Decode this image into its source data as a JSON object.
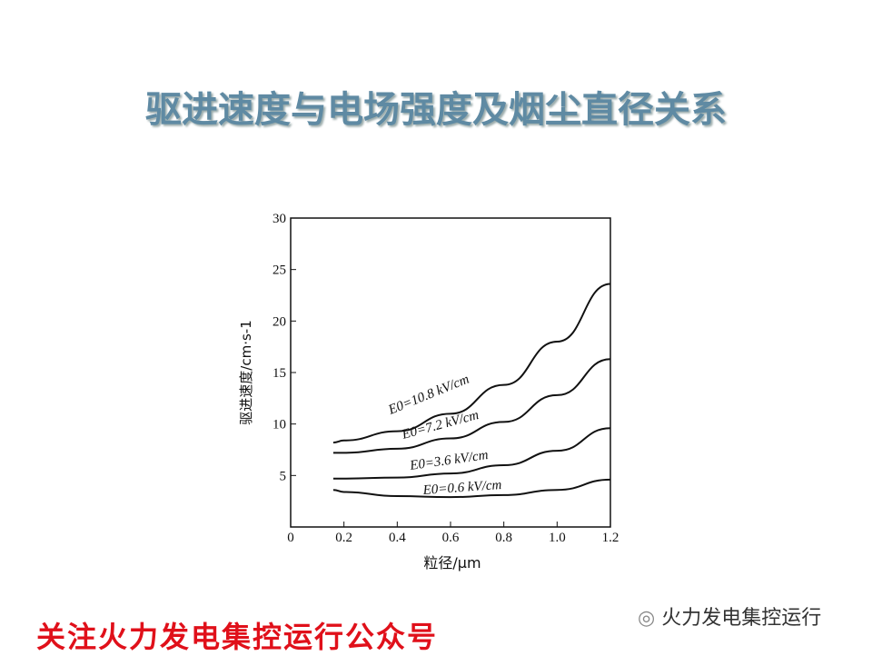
{
  "title": "驱进速度与电场强度及烟尘直径关系",
  "chart_data": {
    "type": "line",
    "x": [
      0.16,
      0.2,
      0.4,
      0.6,
      0.8,
      1.0,
      1.2
    ],
    "series": [
      {
        "name": "E0=10.8 kV/cm",
        "color": "#111111",
        "values": [
          8.2,
          8.4,
          9.3,
          11.0,
          13.8,
          18.0,
          23.6
        ]
      },
      {
        "name": "E0=7.2 kV/cm",
        "color": "#111111",
        "values": [
          7.2,
          7.2,
          7.6,
          8.6,
          10.2,
          12.8,
          16.3
        ]
      },
      {
        "name": "E0=3.6 kV/cm",
        "color": "#111111",
        "values": [
          4.7,
          4.7,
          4.8,
          5.2,
          6.0,
          7.4,
          9.6
        ]
      },
      {
        "name": "E0=0.6 kV/cm",
        "color": "#111111",
        "values": [
          3.6,
          3.4,
          3.0,
          2.9,
          3.1,
          3.6,
          4.6
        ]
      }
    ],
    "xlim": [
      0,
      1.2
    ],
    "ylim": [
      0,
      30
    ],
    "xticks": [
      0,
      0.2,
      0.4,
      0.6,
      0.8,
      {
        "value": 1,
        "label": "1.0"
      },
      1.2
    ],
    "yticks": [
      5,
      10,
      15,
      20,
      25,
      30
    ],
    "xlabel": "粒径/μm",
    "ylabel": "驱进速度/cm·s-1"
  },
  "footer": "关注火力发电集控运行公众号",
  "watermark": "火力发电集控运行"
}
